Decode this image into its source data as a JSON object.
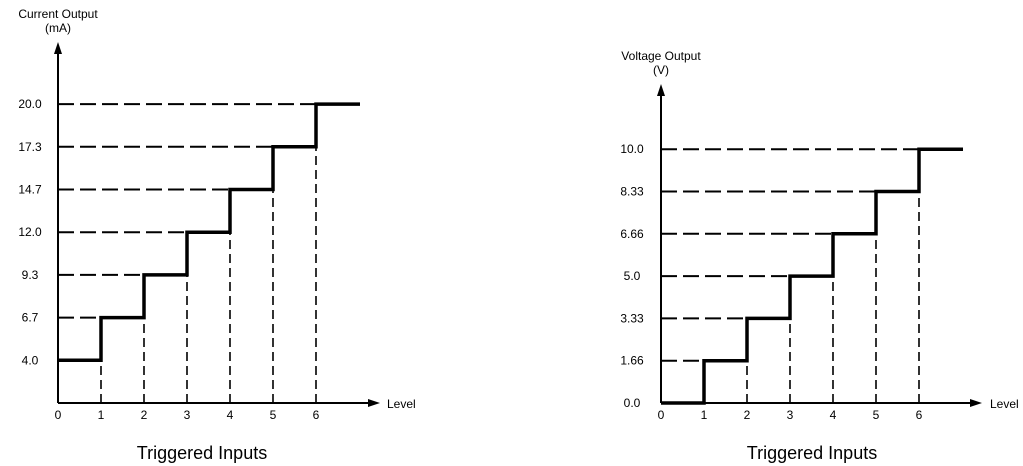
{
  "colors": {
    "line": "#000000",
    "background": "#ffffff"
  },
  "chart_data": [
    {
      "type": "line",
      "title": "",
      "ylabel_lines": [
        "Current Output",
        "(mA)"
      ],
      "xlabel": "Level",
      "caption": "Triggered Inputs",
      "x_ticks": [
        "0",
        "1",
        "2",
        "3",
        "4",
        "5",
        "6"
      ],
      "y_ticks": [
        "4.0",
        "6.7",
        "9.3",
        "12.0",
        "14.7",
        "17.3",
        "20.0"
      ],
      "y_ticks_values": [
        4.0,
        6.7,
        9.3,
        12.0,
        14.7,
        17.3,
        20.0
      ],
      "step": "post",
      "x": [
        0,
        1,
        2,
        3,
        4,
        5,
        6
      ],
      "y": [
        4.0,
        6.7,
        9.3,
        12.0,
        14.7,
        17.3,
        20.0
      ],
      "grid": "dashed guides at each level",
      "legend": "none"
    },
    {
      "type": "line",
      "title": "",
      "ylabel_lines": [
        "Voltage Output",
        "(V)"
      ],
      "xlabel": "Level",
      "caption": "Triggered Inputs",
      "x_ticks": [
        "0",
        "1",
        "2",
        "3",
        "4",
        "5",
        "6"
      ],
      "y_ticks": [
        "0.0",
        "1.66",
        "3.33",
        "5.0",
        "6.66",
        "8.33",
        "10.0"
      ],
      "y_ticks_values": [
        0.0,
        1.66,
        3.33,
        5.0,
        6.66,
        8.33,
        10.0
      ],
      "step": "post",
      "x": [
        0,
        1,
        2,
        3,
        4,
        5,
        6
      ],
      "y": [
        0.0,
        1.66,
        3.33,
        5.0,
        6.66,
        8.33,
        10.0
      ],
      "grid": "dashed guides at each level",
      "legend": "none"
    }
  ]
}
